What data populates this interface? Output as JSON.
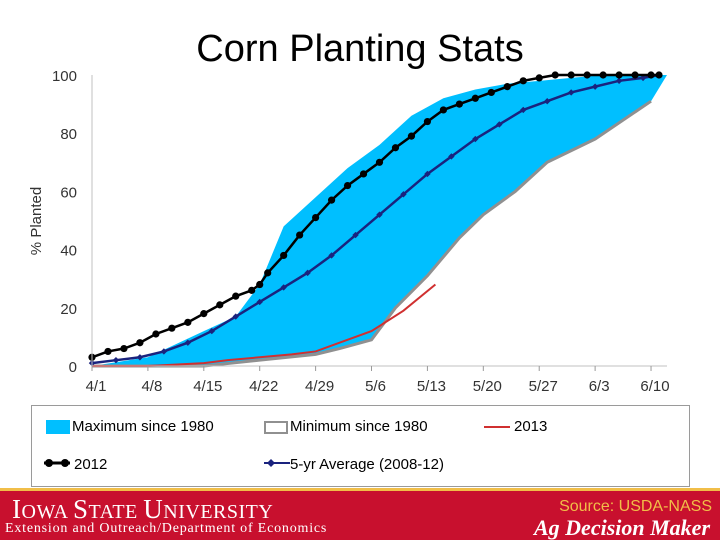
{
  "slide": {
    "title": "Corn Planting Stats"
  },
  "footer": {
    "university_initial": "I",
    "university_rest_1": "OWA ",
    "university_initial_2": "S",
    "university_rest_2": "TATE ",
    "university_initial_3": "U",
    "university_rest_3": "NIVERSITY",
    "extension_line": "Extension and Outreach/Department of Economics",
    "source": "Source: USDA-NASS",
    "brand": "Ag Decision Maker",
    "bar_color": "#c8102e",
    "accent_color": "#f1be48"
  },
  "chart_data": {
    "type": "area",
    "title": "Corn Planting Stats",
    "ylabel": "% Planted",
    "xlabel": "",
    "ylim": [
      0,
      100
    ],
    "yticks": [
      0,
      20,
      40,
      60,
      80,
      100
    ],
    "xticks": [
      "4/1",
      "4/8",
      "4/15",
      "4/22",
      "4/29",
      "5/6",
      "5/13",
      "5/20",
      "5/27",
      "6/3",
      "6/10"
    ],
    "grid": false,
    "legend_position": "bottom",
    "legend": [
      {
        "label": "Maximum since 1980",
        "color": "#00bfff",
        "style": "fill"
      },
      {
        "label": "Minimum since 1980",
        "color": "#909090",
        "style": "line"
      },
      {
        "label": "2013",
        "color": "#d03030",
        "style": "line"
      },
      {
        "label": "2012",
        "color": "#000000",
        "style": "line-dots"
      },
      {
        "label": "5-yr Average (2008-12)",
        "color": "#1a237e",
        "style": "line-diamonds"
      }
    ],
    "series": [
      {
        "name": "Maximum since 1980",
        "color": "#00bfff",
        "x": [
          0,
          7,
          14,
          18,
          21,
          24,
          28,
          32,
          36,
          40,
          44,
          48,
          52,
          56,
          60,
          64,
          68,
          72
        ],
        "values": [
          0,
          3,
          12,
          17,
          28,
          48,
          58,
          68,
          76,
          86,
          92,
          95,
          97,
          98,
          99,
          100,
          100,
          100
        ]
      },
      {
        "name": "Minimum since 1980",
        "color": "#909090",
        "x": [
          0,
          7,
          14,
          21,
          28,
          31,
          35,
          38,
          42,
          46,
          49,
          53,
          57,
          63,
          70
        ],
        "values": [
          0,
          0,
          0,
          2,
          4,
          6,
          9,
          20,
          31,
          44,
          52,
          60,
          70,
          78,
          91
        ]
      },
      {
        "name": "2013",
        "color": "#d03030",
        "x": [
          0,
          7,
          14,
          17,
          21,
          25,
          28,
          31,
          35,
          39,
          43
        ],
        "values": [
          0,
          0,
          1,
          2,
          3,
          4,
          5,
          8,
          12,
          19,
          28
        ]
      },
      {
        "name": "2012",
        "color": "#000000",
        "x": [
          0,
          2,
          4,
          6,
          8,
          10,
          12,
          14,
          16,
          18,
          20,
          21,
          22,
          24,
          26,
          28,
          30,
          32,
          34,
          36,
          38,
          40,
          42,
          44,
          46,
          48,
          50,
          52,
          54,
          56,
          58,
          60,
          62,
          64,
          66,
          68,
          70,
          71
        ],
        "values": [
          3,
          5,
          6,
          8,
          11,
          13,
          15,
          18,
          21,
          24,
          26,
          28,
          32,
          38,
          45,
          51,
          57,
          62,
          66,
          70,
          75,
          79,
          84,
          88,
          90,
          92,
          94,
          96,
          98,
          99,
          100,
          100,
          100,
          100,
          100,
          100,
          100,
          100
        ]
      },
      {
        "name": "5-yr Average (2008-12)",
        "color": "#1a237e",
        "x": [
          0,
          3,
          6,
          9,
          12,
          15,
          18,
          21,
          24,
          27,
          30,
          33,
          36,
          39,
          42,
          45,
          48,
          51,
          54,
          57,
          60,
          63,
          66,
          69,
          71
        ],
        "values": [
          1,
          2,
          3,
          5,
          8,
          12,
          17,
          22,
          27,
          32,
          38,
          45,
          52,
          59,
          66,
          72,
          78,
          83,
          88,
          91,
          94,
          96,
          98,
          99,
          100
        ]
      }
    ]
  }
}
